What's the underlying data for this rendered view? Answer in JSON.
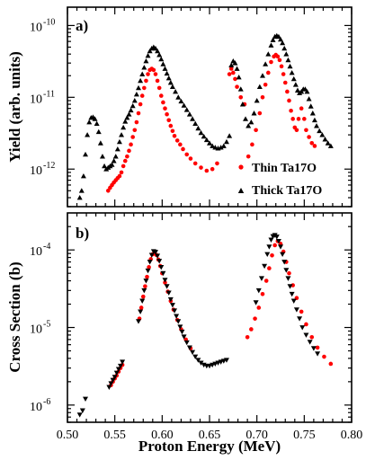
{
  "chart_data": [
    {
      "type": "scatter",
      "panel_label": "a)",
      "ylabel": "Yield (arb. units)",
      "xlabel": "",
      "yscale": "log",
      "ylim": [
        3e-13,
        1.8e-10
      ],
      "xlim": [
        0.5,
        0.8
      ],
      "y_ticks": [
        {
          "value": 1e-12,
          "mantissa": "10",
          "exp": "-12"
        },
        {
          "value": 1e-11,
          "mantissa": "10",
          "exp": "-11"
        },
        {
          "value": 1e-10,
          "mantissa": "10",
          "exp": "-10"
        }
      ],
      "legend_position": "bottom-right",
      "series": [
        {
          "name": "Thin Ta17O",
          "marker": "circle",
          "color": "#ff0000",
          "x": [
            0.543,
            0.545,
            0.547,
            0.549,
            0.551,
            0.553,
            0.555,
            0.557,
            0.559,
            0.561,
            0.563,
            0.565,
            0.567,
            0.569,
            0.571,
            0.573,
            0.575,
            0.577,
            0.579,
            0.581,
            0.583,
            0.585,
            0.587,
            0.589,
            0.591,
            0.593,
            0.595,
            0.597,
            0.599,
            0.601,
            0.603,
            0.605,
            0.607,
            0.609,
            0.611,
            0.613,
            0.616,
            0.619,
            0.622,
            0.626,
            0.63,
            0.635,
            0.641,
            0.647,
            0.653,
            0.658,
            0.671,
            0.673,
            0.675,
            0.677,
            0.679,
            0.683,
            0.687,
            0.691,
            0.695,
            0.699,
            0.703,
            0.706,
            0.709,
            0.712,
            0.715,
            0.718,
            0.72,
            0.722,
            0.724,
            0.726,
            0.728,
            0.73,
            0.732,
            0.734,
            0.736,
            0.738,
            0.74,
            0.742,
            0.744,
            0.747,
            0.75,
            0.752,
            0.755,
            0.758,
            0.761
          ],
          "y": [
            5e-13,
            5.5e-13,
            6e-13,
            6.5e-13,
            7e-13,
            7.5e-13,
            8e-13,
            9e-13,
            1.1e-12,
            1.3e-12,
            1.5e-12,
            1.8e-12,
            2.2e-12,
            2.8e-12,
            3.5e-12,
            4.5e-12,
            6e-12,
            8e-12,
            1.05e-11,
            1.35e-11,
            1.7e-11,
            2.1e-11,
            2.4e-11,
            2.5e-11,
            2.4e-11,
            2.1e-11,
            1.7e-11,
            1.35e-11,
            1.05e-11,
            8.5e-12,
            7e-12,
            5.8e-12,
            4.8e-12,
            4e-12,
            3.4e-12,
            2.9e-12,
            2.5e-12,
            2.2e-12,
            1.9e-12,
            1.6e-12,
            1.4e-12,
            1.2e-12,
            1.05e-12,
            9.5e-13,
            1e-12,
            1.2e-12,
            2.1e-11,
            2.5e-11,
            2.2e-11,
            1.8e-11,
            1.4e-11,
            1e-11,
            8e-12,
            1.5e-12,
            2.2e-12,
            3.5e-12,
            6e-12,
            1e-11,
            1.5e-11,
            2.2e-11,
            3.1e-11,
            3.7e-11,
            3.9e-11,
            3.7e-11,
            3.3e-11,
            2.7e-11,
            2.1e-11,
            1.6e-11,
            1.2e-11,
            9e-12,
            6.5e-12,
            5e-12,
            3.8e-12,
            3.5e-12,
            5e-12,
            7e-12,
            5e-12,
            3.5e-12,
            2.8e-12,
            2.3e-12,
            2.1e-12
          ]
        },
        {
          "name": "Thick Ta17O",
          "marker": "triangle-up",
          "color": "#000000",
          "x": [
            0.513,
            0.515,
            0.517,
            0.519,
            0.521,
            0.523,
            0.525,
            0.527,
            0.529,
            0.531,
            0.533,
            0.535,
            0.537,
            0.539,
            0.541,
            0.543,
            0.545,
            0.547,
            0.549,
            0.551,
            0.553,
            0.555,
            0.557,
            0.559,
            0.561,
            0.563,
            0.565,
            0.567,
            0.569,
            0.571,
            0.573,
            0.575,
            0.577,
            0.579,
            0.581,
            0.583,
            0.585,
            0.587,
            0.589,
            0.591,
            0.593,
            0.595,
            0.597,
            0.599,
            0.601,
            0.603,
            0.605,
            0.607,
            0.609,
            0.611,
            0.614,
            0.617,
            0.62,
            0.623,
            0.626,
            0.629,
            0.632,
            0.635,
            0.638,
            0.641,
            0.644,
            0.647,
            0.65,
            0.653,
            0.656,
            0.659,
            0.662,
            0.665,
            0.668,
            0.671,
            0.673,
            0.675,
            0.677,
            0.679,
            0.681,
            0.683,
            0.685,
            0.688,
            0.691,
            0.694,
            0.697,
            0.7,
            0.703,
            0.706,
            0.709,
            0.712,
            0.715,
            0.717,
            0.719,
            0.721,
            0.723,
            0.725,
            0.727,
            0.729,
            0.731,
            0.733,
            0.735,
            0.737,
            0.739,
            0.741,
            0.743,
            0.745,
            0.747,
            0.749,
            0.751,
            0.753,
            0.755,
            0.757,
            0.759,
            0.761,
            0.763,
            0.766,
            0.769,
            0.772,
            0.775,
            0.778
          ],
          "y": [
            4e-13,
            5e-13,
            8e-13,
            1.6e-12,
            3e-12,
            4.5e-12,
            5.2e-12,
            5.3e-12,
            5e-12,
            4.3e-12,
            3.3e-12,
            2.3e-12,
            1.5e-12,
            1.1e-12,
            1e-12,
            1.05e-12,
            1.1e-12,
            1.15e-12,
            1.3e-12,
            1.5e-12,
            1.9e-12,
            2.4e-12,
            3e-12,
            3.8e-12,
            4.6e-12,
            5.2e-12,
            5.8e-12,
            6.6e-12,
            7.6e-12,
            9e-12,
            1.1e-11,
            1.35e-11,
            1.7e-11,
            2.1e-11,
            2.6e-11,
            3.2e-11,
            3.8e-11,
            4.4e-11,
            4.8e-11,
            5e-11,
            4.8e-11,
            4.4e-11,
            3.9e-11,
            3.4e-11,
            2.9e-11,
            2.5e-11,
            2.15e-11,
            1.85e-11,
            1.6e-11,
            1.4e-11,
            1.2e-11,
            1e-11,
            8.8e-12,
            7.7e-12,
            6.7e-12,
            5.8e-12,
            5e-12,
            4.3e-12,
            3.7e-12,
            3.2e-12,
            2.85e-12,
            2.55e-12,
            2.3e-12,
            2.1e-12,
            2e-12,
            1.95e-12,
            2e-12,
            2.1e-12,
            2.4e-12,
            2.9e-12,
            2.8e-11,
            3.2e-11,
            3e-11,
            2.5e-11,
            1.9e-11,
            1.3e-11,
            8e-12,
            5e-12,
            4e-12,
            4.5e-12,
            6e-12,
            9e-12,
            1.4e-11,
            2e-11,
            2.9e-11,
            4e-11,
            5.3e-11,
            6.3e-11,
            7e-11,
            7.2e-11,
            7e-11,
            6.4e-11,
            5.7e-11,
            4.8e-11,
            4e-11,
            3.3e-11,
            2.7e-11,
            2.2e-11,
            1.8e-11,
            1.5e-11,
            1.25e-11,
            1.15e-11,
            1.2e-11,
            1.3e-11,
            1.3e-11,
            1.2e-11,
            9.5e-12,
            7.5e-12,
            6e-12,
            4.8e-12,
            4e-12,
            3.4e-12,
            3e-12,
            2.6e-12,
            2.3e-12,
            2.1e-12
          ]
        }
      ]
    },
    {
      "type": "scatter",
      "panel_label": "b)",
      "ylabel": "Cross Section (b)",
      "xlabel": "Proton Energy (MeV)",
      "yscale": "log",
      "ylim": [
        6e-07,
        0.0003
      ],
      "xlim": [
        0.5,
        0.8
      ],
      "y_ticks": [
        {
          "value": 1e-06,
          "mantissa": "10",
          "exp": "-6"
        },
        {
          "value": 1e-05,
          "mantissa": "10",
          "exp": "-5"
        },
        {
          "value": 0.0001,
          "mantissa": "10",
          "exp": "-4"
        }
      ],
      "x_ticks": [
        "0.50",
        "0.55",
        "0.60",
        "0.65",
        "0.70",
        "0.75",
        "0.80"
      ],
      "series": [
        {
          "name": "Thin Ta17O",
          "marker": "circle",
          "color": "#ff0000",
          "x": [
            0.546,
            0.548,
            0.55,
            0.552,
            0.554,
            0.556,
            0.558,
            0.576,
            0.578,
            0.58,
            0.582,
            0.584,
            0.586,
            0.588,
            0.59,
            0.592,
            0.594,
            0.596,
            0.598,
            0.6,
            0.603,
            0.606,
            0.609,
            0.612,
            0.616,
            0.62,
            0.625,
            0.63,
            0.69,
            0.694,
            0.698,
            0.702,
            0.706,
            0.71,
            0.713,
            0.716,
            0.719,
            0.722,
            0.725,
            0.728,
            0.731,
            0.734,
            0.738,
            0.742,
            0.747,
            0.752,
            0.758,
            0.764,
            0.771,
            0.778
          ],
          "y": [
            1.8e-06,
            2e-06,
            2.2e-06,
            2.4e-06,
            2.7e-06,
            3e-06,
            3.3e-06,
            1.3e-05,
            1.8e-05,
            2.5e-05,
            3.4e-05,
            4.5e-05,
            6e-05,
            7.6e-05,
            8.8e-05,
            9.2e-05,
            8.6e-05,
            7.5e-05,
            6.2e-05,
            5e-05,
            3.8e-05,
            2.9e-05,
            2.2e-05,
            1.7e-05,
            1.25e-05,
            9.5e-06,
            7e-06,
            5.4e-06,
            7.5e-06,
            9.5e-06,
            1.3e-05,
            1.8e-05,
            2.7e-05,
            4e-05,
            5.8e-05,
            8.5e-05,
            0.000115,
            0.00013,
            0.00012,
            9.5e-05,
            7e-05,
            5e-05,
            3.5e-05,
            2.4e-05,
            1.6e-05,
            1.1e-05,
            7.5e-06,
            5.5e-06,
            4.2e-06,
            3.4e-06
          ]
        },
        {
          "name": "Thick Ta17O",
          "marker": "triangle-down",
          "color": "#000000",
          "x": [
            0.513,
            0.516,
            0.519,
            0.544,
            0.546,
            0.548,
            0.55,
            0.552,
            0.554,
            0.556,
            0.558,
            0.575,
            0.577,
            0.579,
            0.581,
            0.583,
            0.585,
            0.587,
            0.589,
            0.591,
            0.593,
            0.595,
            0.597,
            0.599,
            0.601,
            0.603,
            0.605,
            0.607,
            0.609,
            0.611,
            0.613,
            0.615,
            0.617,
            0.619,
            0.621,
            0.623,
            0.626,
            0.629,
            0.632,
            0.635,
            0.638,
            0.641,
            0.644,
            0.647,
            0.65,
            0.653,
            0.656,
            0.659,
            0.662,
            0.665,
            0.668,
            0.699,
            0.702,
            0.705,
            0.708,
            0.711,
            0.713,
            0.715,
            0.717,
            0.719,
            0.721,
            0.723,
            0.725,
            0.727,
            0.729,
            0.731,
            0.733,
            0.735,
            0.737,
            0.739,
            0.742,
            0.745,
            0.748,
            0.752,
            0.756,
            0.76,
            0.764
          ],
          "y": [
            7.5e-07,
            8.5e-07,
            1.2e-06,
            1.7e-06,
            1.9e-06,
            2.1e-06,
            2.3e-06,
            2.6e-06,
            2.9e-06,
            3.2e-06,
            3.6e-06,
            1.2e-05,
            1.6e-05,
            2.2e-05,
            3e-05,
            4e-05,
            5.4e-05,
            7e-05,
            8.6e-05,
            9.6e-05,
            9.4e-05,
            8.4e-05,
            7.2e-05,
            6e-05,
            5e-05,
            4.1e-05,
            3.4e-05,
            2.8e-05,
            2.3e-05,
            1.95e-05,
            1.65e-05,
            1.4e-05,
            1.2e-05,
            1.02e-05,
            8.8e-06,
            7.6e-06,
            6.4e-06,
            5.5e-06,
            4.8e-06,
            4.2e-06,
            3.8e-06,
            3.5e-06,
            3.3e-06,
            3.2e-06,
            3.2e-06,
            3.3e-06,
            3.4e-06,
            3.5e-06,
            3.6e-06,
            3.7e-06,
            3.8e-06,
            2.1e-05,
            3e-05,
            4.3e-05,
            6.2e-05,
            8.8e-05,
            0.00011,
            0.000135,
            0.00015,
            0.000155,
            0.000148,
            0.00013,
            0.00011,
            8.8e-05,
            7e-05,
            5.5e-05,
            4.3e-05,
            3.4e-05,
            2.7e-05,
            2.2e-05,
            1.7e-05,
            1.3e-05,
            1e-05,
            8e-06,
            6.5e-06,
            5.4e-06,
            4.6e-06
          ]
        }
      ]
    }
  ]
}
